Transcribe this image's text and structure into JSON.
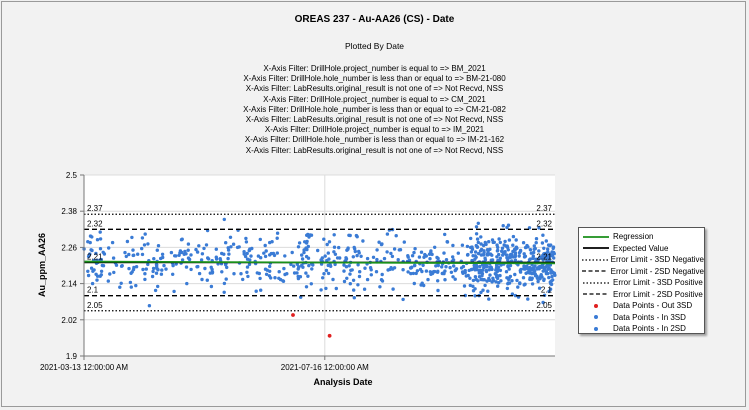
{
  "chart_data": {
    "type": "scatter",
    "title": "OREAS 237 - Au-AA26 (CS) - Date",
    "subtitle": "Plotted By Date",
    "filters": [
      "X-Axis Filter: DrillHole.project_number is equal to => BM_2021",
      "X-Axis Filter: DrillHole.hole_number is less than or equal to => BM-21-080",
      "X-Axis Filter: LabResults.original_result is not one of => Not Recvd, NSS",
      "X-Axis Filter: DrillHole.project_number is equal to => CM_2021",
      "X-Axis Filter: DrillHole.hole_number is less than or equal to => CM-21-082",
      "X-Axis Filter: LabResults.original_result is not one of => Not Recvd, NSS",
      "X-Axis Filter: DrillHole.project_number is equal to => IM_2021",
      "X-Axis Filter: DrillHole.hole_number is less than or equal to => IM-21-162",
      "X-Axis Filter: LabResults.original_result is not one of => Not Recvd, NSS"
    ],
    "xlabel": "Analysis Date",
    "ylabel": "Au_ppm_AA26",
    "xlim": [
      "2021-03-13 12:00:00",
      "2021-11-13 00:00:00"
    ],
    "ylim": [
      1.9,
      2.5
    ],
    "y_ticks": [
      "2.5",
      "2.38",
      "2.26",
      "2.14",
      "2.02",
      "1.9"
    ],
    "x_ticks": [
      {
        "label": "2021-03-13 12:00:00 AM",
        "date": "2021-03-13 12:00:00"
      },
      {
        "label": "2021-07-16 12:00:00 AM",
        "date": "2021-07-16 12:00:00"
      }
    ],
    "reference_lines": {
      "expected_value": 2.21,
      "sd2_positive": 2.32,
      "sd2_negative": 2.1,
      "sd3_positive": 2.37,
      "sd3_negative": 2.05
    },
    "reference_labels": [
      "2.37",
      "2.32",
      "2.21",
      "2.1",
      "2.05"
    ],
    "regression": {
      "start": 2.213,
      "end": 2.207
    },
    "outliers_3sd": [
      {
        "date": "2021-06-30",
        "y": 2.036
      },
      {
        "date": "2021-07-19",
        "y": 1.967
      }
    ],
    "in_3sd_points_description": "dense band of approx. 900 points, mostly between 2.12 and 2.30",
    "grid": true,
    "legend_position": "right",
    "legend": [
      {
        "label": "Regression",
        "style": "line",
        "color": "#1a8f1a"
      },
      {
        "label": "Expected Value",
        "style": "line",
        "color": "#000000"
      },
      {
        "label": "Error Limit - 3SD Negative",
        "style": "dotted",
        "color": "#000000"
      },
      {
        "label": "Error Limit - 2SD Negative",
        "style": "dashed",
        "color": "#000000"
      },
      {
        "label": "Error Limit - 3SD Positive",
        "style": "dotted",
        "color": "#000000"
      },
      {
        "label": "Error Limit - 2SD Positive",
        "style": "dashed",
        "color": "#000000"
      },
      {
        "label": "Data Points - Out 3SD",
        "style": "dot",
        "color": "#e02020"
      },
      {
        "label": "Data Points - In 3SD",
        "style": "dot",
        "color": "#3a7bd5"
      },
      {
        "label": "Data Points - In 2SD",
        "style": "dot",
        "color": "#3a7bd5"
      }
    ]
  }
}
